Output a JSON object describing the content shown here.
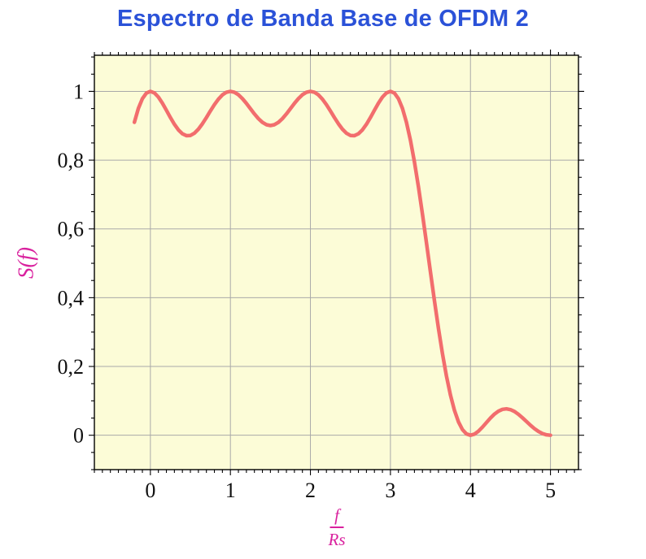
{
  "chart_data": {
    "type": "line",
    "title": "Espectro de Banda Base de OFDM 2",
    "ylabel": "S(f)",
    "xlabel": {
      "numerator": "f",
      "denominator": "Rs"
    },
    "xlim": [
      -0.7,
      5.35
    ],
    "ylim": [
      -0.1,
      1.105
    ],
    "xticks": {
      "values": [
        0,
        1,
        2,
        3,
        4,
        5
      ],
      "labels": [
        "0",
        "1",
        "2",
        "3",
        "4",
        "5"
      ]
    },
    "yticks": {
      "values": [
        0,
        0.2,
        0.4,
        0.6,
        0.8,
        1
      ],
      "labels": [
        "0",
        "0,2",
        "0,4",
        "0,6",
        "0,8",
        "1"
      ]
    },
    "minor_tick_step": {
      "x": 0.1,
      "y": 0.05
    },
    "grid": true,
    "legend": "none",
    "colors": {
      "title": "#2b52d8",
      "axis_labels": "#d9219e",
      "curve": "#f26d6d",
      "plot_background": "#fcfcd7",
      "grid": "#a9a9a9",
      "axis_frame": "#000000",
      "tick_labels": "#111111"
    },
    "series": [
      {
        "name": "S(f)",
        "x_start": -0.2,
        "x_step": 0.05,
        "y": [
          0.9101,
          0.9506,
          0.9787,
          0.9949,
          1,
          0.9955,
          0.9833,
          0.9657,
          0.9451,
          0.9239,
          0.9042,
          0.888,
          0.8767,
          0.8712,
          0.8718,
          0.8783,
          0.89,
          0.9057,
          0.9239,
          0.9431,
          0.9614,
          0.9773,
          0.9897,
          0.9974,
          1,
          0.9974,
          0.9902,
          0.9789,
          0.965,
          0.9496,
          0.9344,
          0.9207,
          0.9099,
          0.903,
          0.9006,
          0.903,
          0.9099,
          0.9207,
          0.9344,
          0.9496,
          0.965,
          0.9789,
          0.9902,
          0.9974,
          1,
          0.9974,
          0.9897,
          0.9773,
          0.9614,
          0.9431,
          0.9239,
          0.9057,
          0.89,
          0.8783,
          0.8718,
          0.8712,
          0.8767,
          0.888,
          0.9042,
          0.9239,
          0.9451,
          0.9657,
          0.9833,
          0.9955,
          1,
          0.9949,
          0.9787,
          0.9506,
          0.9101,
          0.8578,
          0.7947,
          0.7225,
          0.6434,
          0.5599,
          0.4748,
          0.3909,
          0.311,
          0.2374,
          0.1722,
          0.1169,
          0.0724,
          0.039,
          0.0164,
          0.0038,
          0,
          0.0033,
          0.0118,
          0.0236,
          0.0369,
          0.05,
          0.0615,
          0.0701,
          0.0753,
          0.0768,
          0.0745,
          0.069,
          0.0608,
          0.0508,
          0.0399,
          0.0291,
          0.0192,
          0.011,
          0.0049,
          0.0012,
          0
        ]
      }
    ]
  }
}
